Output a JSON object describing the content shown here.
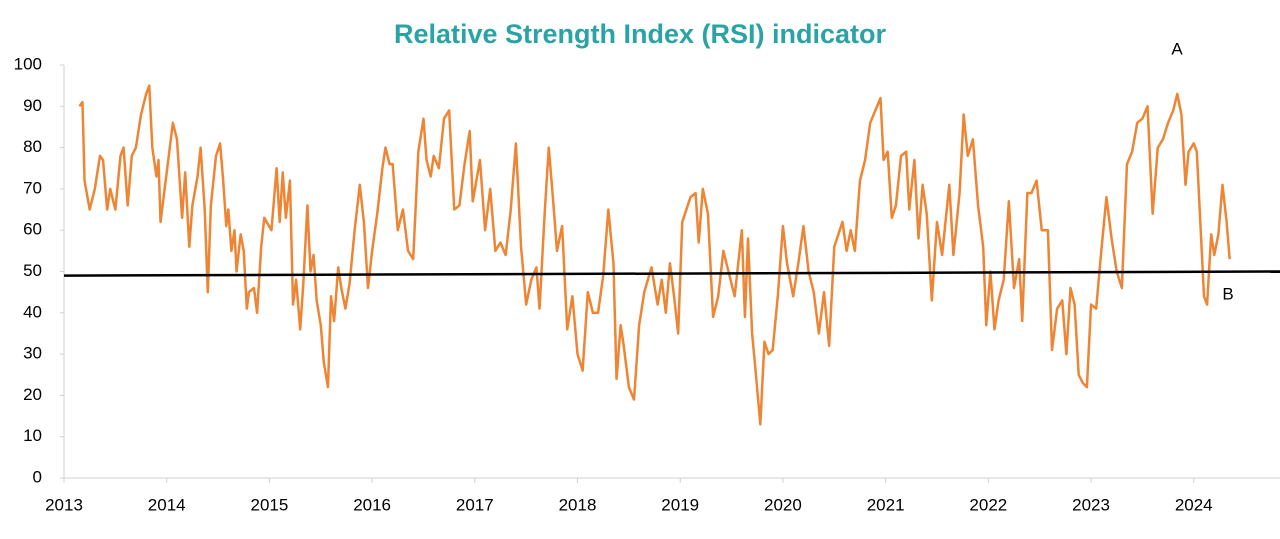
{
  "chart_data": {
    "type": "line",
    "title": "Relative Strength Index (RSI) indicator",
    "x": [
      2013.15,
      2013.18,
      2013.2,
      2013.25,
      2013.3,
      2013.35,
      2013.38,
      2013.42,
      2013.45,
      2013.5,
      2013.55,
      2013.58,
      2013.62,
      2013.66,
      2013.7,
      2013.75,
      2013.8,
      2013.83,
      2013.86,
      2013.9,
      2013.92,
      2013.94,
      2013.98,
      2014.02,
      2014.06,
      2014.1,
      2014.15,
      2014.18,
      2014.22,
      2014.25,
      2014.3,
      2014.33,
      2014.37,
      2014.4,
      2014.43,
      2014.48,
      2014.52,
      2014.55,
      2014.58,
      2014.6,
      2014.63,
      2014.66,
      2014.68,
      2014.72,
      2014.75,
      2014.78,
      2014.8,
      2014.85,
      2014.88,
      2014.92,
      2014.95,
      2015.02,
      2015.07,
      2015.1,
      2015.13,
      2015.16,
      2015.2,
      2015.23,
      2015.26,
      2015.3,
      2015.33,
      2015.37,
      2015.4,
      2015.43,
      2015.46,
      2015.5,
      2015.53,
      2015.57,
      2015.6,
      2015.63,
      2015.67,
      2015.7,
      2015.74,
      2015.78,
      2015.83,
      2015.88,
      2015.92,
      2015.96,
      2016.0,
      2016.05,
      2016.1,
      2016.13,
      2016.17,
      2016.2,
      2016.25,
      2016.3,
      2016.35,
      2016.4,
      2016.45,
      2016.5,
      2016.53,
      2016.57,
      2016.6,
      2016.65,
      2016.7,
      2016.75,
      2016.8,
      2016.85,
      2016.9,
      2016.95,
      2016.98,
      2017.05,
      2017.1,
      2017.15,
      2017.2,
      2017.25,
      2017.3,
      2017.35,
      2017.4,
      2017.45,
      2017.5,
      2017.55,
      2017.6,
      2017.63,
      2017.68,
      2017.72,
      2017.76,
      2017.8,
      2017.85,
      2017.9,
      2017.95,
      2018.0,
      2018.05,
      2018.1,
      2018.15,
      2018.2,
      2018.25,
      2018.3,
      2018.35,
      2018.38,
      2018.42,
      2018.45,
      2018.5,
      2018.55,
      2018.6,
      2018.65,
      2018.72,
      2018.78,
      2018.82,
      2018.86,
      2018.9,
      2018.94,
      2018.98,
      2019.02,
      2019.1,
      2019.15,
      2019.18,
      2019.22,
      2019.27,
      2019.32,
      2019.37,
      2019.42,
      2019.47,
      2019.53,
      2019.6,
      2019.63,
      2019.66,
      2019.7,
      2019.73,
      2019.78,
      2019.82,
      2019.86,
      2019.9,
      2019.95,
      2020.0,
      2020.04,
      2020.1,
      2020.15,
      2020.2,
      2020.25,
      2020.3,
      2020.35,
      2020.4,
      2020.45,
      2020.5,
      2020.58,
      2020.62,
      2020.66,
      2020.7,
      2020.75,
      2020.8,
      2020.85,
      2020.9,
      2020.95,
      2020.98,
      2021.02,
      2021.06,
      2021.1,
      2021.15,
      2021.2,
      2021.23,
      2021.28,
      2021.32,
      2021.36,
      2021.4,
      2021.45,
      2021.5,
      2021.55,
      2021.62,
      2021.66,
      2021.72,
      2021.76,
      2021.8,
      2021.85,
      2021.9,
      2021.95,
      2021.98,
      2022.02,
      2022.06,
      2022.1,
      2022.15,
      2022.2,
      2022.25,
      2022.3,
      2022.33,
      2022.38,
      2022.42,
      2022.47,
      2022.52,
      2022.58,
      2022.62,
      2022.67,
      2022.72,
      2022.76,
      2022.8,
      2022.84,
      2022.88,
      2022.92,
      2022.96,
      2023.0,
      2023.05,
      2023.1,
      2023.15,
      2023.2,
      2023.25,
      2023.3,
      2023.35,
      2023.4,
      2023.45,
      2023.5,
      2023.55,
      2023.6,
      2023.65,
      2023.7,
      2023.75,
      2023.8,
      2023.84,
      2023.88,
      2023.92,
      2023.95,
      2024.0,
      2024.03,
      2024.06,
      2024.1,
      2024.13,
      2024.17,
      2024.2,
      2024.24,
      2024.28,
      2024.32,
      2024.35
    ],
    "series": [
      {
        "color": "#ee8534",
        "values": [
          90,
          91,
          72,
          65,
          70,
          78,
          77,
          65,
          70,
          65,
          78,
          80,
          66,
          78,
          80,
          88,
          93,
          95,
          80,
          73,
          77,
          62,
          70,
          78,
          86,
          82,
          63,
          74,
          56,
          66,
          73,
          80,
          65,
          45,
          66,
          78,
          81,
          72,
          61,
          65,
          55,
          60,
          50,
          59,
          55,
          41,
          45,
          46,
          40,
          56,
          63,
          60,
          75,
          62,
          74,
          63,
          72,
          42,
          48,
          36,
          47,
          66,
          50,
          54,
          43,
          37,
          28,
          22,
          44,
          38,
          51,
          46,
          41,
          47,
          60,
          71,
          62,
          46,
          55,
          64,
          75,
          80,
          76,
          76,
          60,
          65,
          55,
          53,
          79,
          87,
          77,
          73,
          78,
          75,
          87,
          89,
          65,
          66,
          76,
          84,
          67,
          77,
          60,
          70,
          55,
          57,
          54,
          65,
          81,
          56,
          42,
          48,
          51,
          41,
          64,
          80,
          68,
          55,
          61,
          36,
          44,
          30,
          26,
          45,
          40,
          40,
          49,
          65,
          52,
          24,
          37,
          32,
          22,
          19,
          37,
          45,
          51,
          42,
          48,
          40,
          52,
          44,
          35,
          62,
          68,
          69,
          57,
          70,
          64,
          39,
          44,
          55,
          50,
          44,
          60,
          39,
          58,
          35,
          27,
          13,
          33,
          30,
          31,
          44,
          61,
          52,
          44,
          52,
          61,
          50,
          45,
          35,
          45,
          32,
          56,
          62,
          55,
          60,
          55,
          72,
          77,
          86,
          89,
          92,
          77,
          79,
          63,
          66,
          78,
          79,
          65,
          77,
          58,
          71,
          64,
          43,
          62,
          54,
          71,
          54,
          69,
          88,
          78,
          82,
          66,
          56,
          37,
          50,
          36,
          43,
          48,
          67,
          46,
          53,
          38,
          69,
          69,
          72,
          60,
          60,
          31,
          41,
          43,
          30,
          46,
          42,
          25,
          23,
          22,
          42,
          41,
          55,
          68,
          58,
          50,
          46,
          76,
          79,
          86,
          87,
          90,
          64,
          80,
          82,
          86,
          89,
          93,
          88,
          71,
          79,
          81,
          79,
          64,
          44,
          42,
          59,
          54,
          59,
          71,
          62,
          53
        ]
      }
    ],
    "trend_line": {
      "x": [
        2013,
        2024.84
      ],
      "values": [
        49,
        50
      ],
      "color": "#000000"
    },
    "annotations": [
      "A",
      "B"
    ],
    "xlim": [
      2013,
      2024.84
    ],
    "xticks": [
      2013,
      2014,
      2015,
      2016,
      2017,
      2018,
      2019,
      2020,
      2021,
      2022,
      2023,
      2024
    ],
    "ylim": [
      0,
      100
    ],
    "yticks": [
      0,
      10,
      20,
      30,
      40,
      50,
      60,
      70,
      80,
      90,
      100
    ],
    "grid": false
  }
}
